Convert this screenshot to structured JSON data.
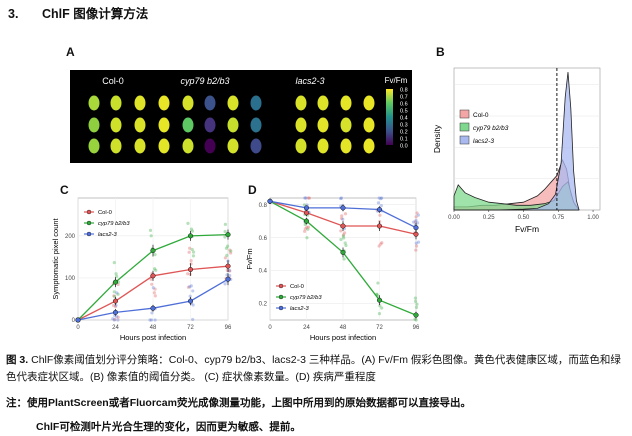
{
  "heading": {
    "number": "3.",
    "title": "ChlF 图像计算方法"
  },
  "panel_labels": {
    "a": "A",
    "b": "B",
    "c": "C",
    "d": "D"
  },
  "panel_a": {
    "genotypes": [
      "Col-0",
      "cyp79 b2/b3",
      "lacs2-3"
    ],
    "colorbar_title": "Fv/Fm",
    "colorbar_ticks": [
      "0.8",
      "0.7",
      "0.6",
      "0.5",
      "0.4",
      "0.3",
      "0.2",
      "0.1",
      "0.0"
    ]
  },
  "chart_data": [
    {
      "panel": "B",
      "type": "area",
      "xlabel": "Fv/Fm",
      "ylabel": "Density",
      "xlim": [
        0,
        1.05
      ],
      "xticks": [
        "0.00",
        "0.25",
        "0.50",
        "0.75",
        "1.00"
      ],
      "threshold_line": 0.74,
      "legend": "top-left",
      "series": [
        {
          "name": "Col-0",
          "color": "#f4a6a6",
          "x": [
            0.0,
            0.1,
            0.2,
            0.3,
            0.4,
            0.5,
            0.6,
            0.65,
            0.7,
            0.74,
            0.78,
            0.81,
            0.84,
            0.87,
            0.9
          ],
          "y": [
            0.2,
            0.2,
            0.3,
            0.3,
            0.4,
            0.5,
            0.9,
            1.3,
            1.8,
            2.2,
            3.2,
            2.6,
            1.0,
            0.3,
            0.0
          ]
        },
        {
          "name": "cyp79 b2/b3",
          "color": "#7fd88e",
          "x": [
            0.0,
            0.03,
            0.08,
            0.15,
            0.25,
            0.35,
            0.45,
            0.55,
            0.65,
            0.72,
            0.78,
            0.82,
            0.86,
            0.9
          ],
          "y": [
            0.9,
            1.6,
            1.1,
            0.8,
            0.5,
            0.4,
            0.3,
            0.3,
            0.4,
            0.6,
            1.5,
            1.8,
            0.5,
            0.0
          ]
        },
        {
          "name": "lacs2-3",
          "color": "#a9b9f0",
          "x": [
            0.0,
            0.3,
            0.5,
            0.6,
            0.68,
            0.73,
            0.77,
            0.8,
            0.82,
            0.84,
            0.86,
            0.88,
            0.9
          ],
          "y": [
            0.0,
            0.0,
            0.05,
            0.1,
            0.4,
            1.0,
            3.0,
            7.2,
            8.8,
            6.5,
            2.5,
            0.6,
            0.0
          ]
        }
      ]
    },
    {
      "panel": "C",
      "type": "line",
      "xlabel": "Hours post infection",
      "ylabel": "Symptomatic pixel count",
      "x": [
        0,
        24,
        48,
        72,
        96
      ],
      "ylim": [
        0,
        290
      ],
      "yticks": [
        0,
        100,
        200
      ],
      "legend": "top-left",
      "series": [
        {
          "name": "Col-0",
          "color": "#e05555",
          "values": [
            0,
            45,
            105,
            120,
            128
          ],
          "err": [
            2,
            10,
            12,
            15,
            14
          ]
        },
        {
          "name": "cyp79 b2/b3",
          "color": "#2faa3a",
          "values": [
            0,
            90,
            165,
            200,
            203
          ],
          "err": [
            2,
            12,
            14,
            12,
            12
          ]
        },
        {
          "name": "lacs2-3",
          "color": "#4f6fd8",
          "values": [
            0,
            18,
            28,
            45,
            97
          ],
          "err": [
            2,
            8,
            8,
            10,
            14
          ]
        }
      ]
    },
    {
      "panel": "D",
      "type": "line",
      "xlabel": "Hours post infection",
      "ylabel": "Fv/Fm",
      "x": [
        0,
        24,
        48,
        72,
        96
      ],
      "ylim": [
        0.1,
        0.84
      ],
      "yticks": [
        "0.2",
        "0.4",
        "0.6",
        "0.8"
      ],
      "legend": "bottom-left",
      "series": [
        {
          "name": "Col-0",
          "color": "#e05555",
          "values": [
            0.82,
            0.75,
            0.67,
            0.67,
            0.62
          ],
          "err": [
            0.01,
            0.02,
            0.03,
            0.03,
            0.03
          ]
        },
        {
          "name": "cyp79 b2/b3",
          "color": "#2faa3a",
          "values": [
            0.82,
            0.7,
            0.51,
            0.22,
            0.13
          ],
          "err": [
            0.01,
            0.02,
            0.03,
            0.03,
            0.02
          ]
        },
        {
          "name": "lacs2-3",
          "color": "#4f6fd8",
          "values": [
            0.82,
            0.78,
            0.78,
            0.77,
            0.66
          ],
          "err": [
            0.01,
            0.01,
            0.02,
            0.02,
            0.03
          ]
        }
      ]
    }
  ],
  "caption": {
    "fig_label": "图 3.",
    "text": "ChlF像素阈值划分评分策略：Col-0、cyp79 b2/b3、lacs2-3 三种样品。(A) Fv/Fm 假彩色图像。黄色代表健康区域，而蓝色和绿色代表症状区域。(B) 像素值的阈值分类。 (C) 症状像素数量。(D) 疾病严重程度"
  },
  "note_line1": "注：使用PlantScreen或者Fluorcam荧光成像测量功能，上图中所用到的原始数据都可以直接导出。",
  "note_line2": "ChlF可检测叶片光合生理的变化，因而更为敏感、提前。"
}
